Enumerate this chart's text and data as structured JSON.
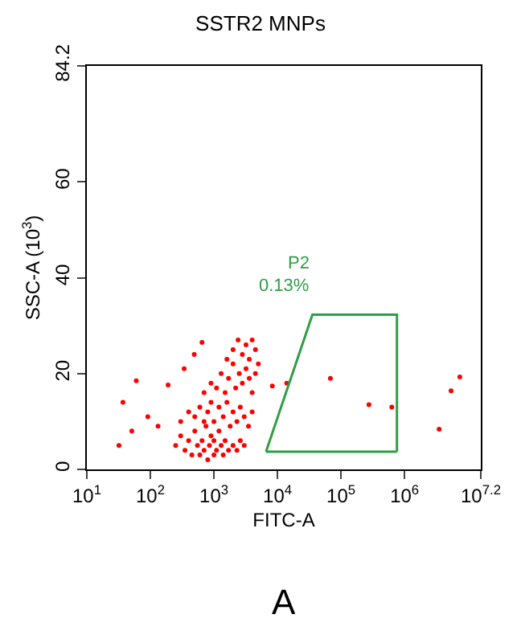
{
  "chart_data": {
    "type": "scatter",
    "title": "SSTR2 MNPs",
    "xlabel": "FITC-A",
    "ylabel": "SSC-A (10$^{3}$)",
    "log": "x",
    "grid": false,
    "legend": false,
    "marker": "circle",
    "xlim": [
      10,
      15848932
    ],
    "ylim": [
      0,
      84.2
    ],
    "xticks": [
      {
        "value": 10,
        "label": "10$^{1}$"
      },
      {
        "value": 100,
        "label": "10$^{2}$"
      },
      {
        "value": 1000,
        "label": "10$^{3}$"
      },
      {
        "value": 10000,
        "label": "10$^{4}$"
      },
      {
        "value": 100000,
        "label": "10$^{5}$"
      },
      {
        "value": 1000000,
        "label": "10$^{6}$"
      },
      {
        "value": 15848932,
        "label": "10$^{7.2}$"
      }
    ],
    "yticks": [
      0,
      20,
      40,
      60,
      84.2
    ],
    "series": [
      {
        "color": "#ff0000",
        "x": [
          250,
          300,
          350,
          400,
          450,
          500,
          550,
          600,
          650,
          700,
          750,
          800,
          850,
          900,
          1000,
          1000,
          1100,
          1200,
          1300,
          1400,
          1500,
          1700,
          2000,
          2300,
          2600,
          3000,
          300,
          400,
          500,
          600,
          700,
          800,
          900,
          1000,
          1200,
          1400,
          1600,
          1800,
          2000,
          2300,
          2600,
          3000,
          3500,
          4000,
          700,
          900,
          1100,
          1300,
          1500,
          1700,
          2000,
          2200,
          2500,
          2800,
          3200,
          3600,
          4000,
          4500,
          1600,
          2000,
          2400,
          2800,
          3200,
          3600,
          4000,
          4500,
          5000,
          37,
          32,
          60,
          51,
          91,
          132,
          190,
          340,
          490,
          650,
          8300,
          14000,
          68000,
          275000,
          630000,
          3500000,
          5400000,
          7400000
        ],
        "values": [
          5,
          7,
          4,
          6,
          3,
          8,
          5,
          3,
          6,
          4,
          9,
          2,
          5,
          7,
          3,
          6,
          4,
          8,
          5,
          3,
          6,
          4,
          5,
          4,
          6,
          5,
          10,
          12,
          11,
          13,
          10,
          12,
          14,
          10,
          13,
          11,
          14,
          9,
          12,
          10,
          13,
          11,
          9,
          12,
          16,
          18,
          17,
          20,
          16,
          19,
          22,
          17,
          20,
          18,
          21,
          19,
          16,
          20,
          23,
          25,
          27,
          24,
          26,
          23,
          27,
          25,
          22,
          14,
          5,
          18.5,
          8,
          11,
          9,
          17.6,
          21,
          24,
          26.5,
          17.4,
          18,
          19,
          13.5,
          13,
          8.4,
          16.4,
          19.3
        ]
      },
      {
        "type": "line",
        "name": "P2",
        "marker": "none",
        "color": "#2e9e44",
        "x": [
          6600,
          35500,
          759000,
          759000
        ],
        "values": [
          3.7,
          32.3,
          32.3,
          3.7
        ]
      },
      {
        "type": "line",
        "marker": "none",
        "color": "#2e9e44",
        "x": [
          6600,
          759000
        ],
        "values": [
          3.7,
          3.7
        ]
      }
    ],
    "annotations": [
      "0.13%",
      "A"
    ]
  }
}
